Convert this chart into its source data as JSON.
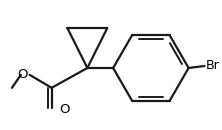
{
  "background_color": "#ffffff",
  "line_color": "#1a1a1a",
  "line_width": 1.6,
  "text_color": "#000000",
  "br_label": "Br",
  "o_label": "O",
  "lw_inner": 1.4
}
